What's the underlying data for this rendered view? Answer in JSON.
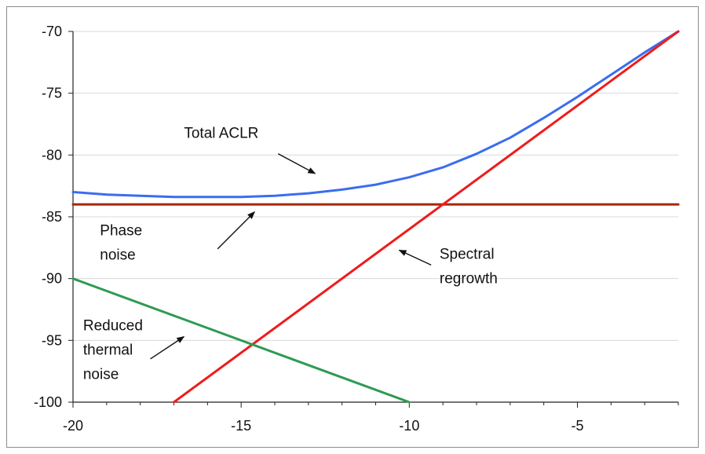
{
  "chart_data": {
    "type": "line",
    "title": "",
    "xlabel": "",
    "ylabel": "",
    "xlim": [
      -20,
      -2
    ],
    "ylim": [
      -100,
      -70
    ],
    "xticks": [
      -20,
      -15,
      -10,
      -5
    ],
    "xtick_labels": [
      "-20",
      "-15",
      "-10",
      "-5"
    ],
    "yticks": [
      -70,
      -75,
      -80,
      -85,
      -90,
      -95,
      -100
    ],
    "ytick_labels": [
      "-70",
      "-75",
      "-80",
      "-85",
      "-90",
      "-95",
      "-100"
    ],
    "grid": "horizontal",
    "legend": "none",
    "series": [
      {
        "name": "Total ACLR",
        "color": "#3a6df0",
        "x": [
          -20,
          -19,
          -18,
          -17,
          -16,
          -15,
          -14,
          -13,
          -12,
          -11,
          -10,
          -9,
          -8,
          -7,
          -6,
          -5,
          -4,
          -3,
          -2
        ],
        "y": [
          -83.0,
          -83.2,
          -83.3,
          -83.4,
          -83.4,
          -83.4,
          -83.3,
          -83.1,
          -82.8,
          -82.4,
          -81.8,
          -81.0,
          -79.9,
          -78.6,
          -77.0,
          -75.3,
          -73.5,
          -71.7,
          -70.0
        ]
      },
      {
        "name": "Phase noise",
        "color": "#a52a0a",
        "x": [
          -20,
          -2
        ],
        "y": [
          -84,
          -84
        ]
      },
      {
        "name": "Spectral regrowth",
        "color": "#ee1c1c",
        "x": [
          -17,
          -2
        ],
        "y": [
          -100,
          -70
        ]
      },
      {
        "name": "Reduced thermal noise",
        "color": "#2e9a52",
        "x": [
          -20,
          -10
        ],
        "y": [
          -90,
          -100
        ]
      }
    ],
    "annotations": [
      {
        "lines": [
          "Total ACLR"
        ],
        "text_x": -16.7,
        "text_y": -78.6,
        "anchor": "start",
        "arrow_from": [
          -13.9,
          -79.9
        ],
        "arrow_to": [
          -12.8,
          -81.5
        ]
      },
      {
        "lines": [
          "Phase",
          "noise"
        ],
        "text_x": -19.2,
        "text_y": -86.5,
        "anchor": "start",
        "arrow_from": [
          -15.7,
          -87.6
        ],
        "arrow_to": [
          -14.6,
          -84.6
        ]
      },
      {
        "lines": [
          "Spectral",
          "regrowth"
        ],
        "text_x": -9.1,
        "text_y": -88.4,
        "anchor": "start",
        "arrow_from": [
          -9.35,
          -88.9
        ],
        "arrow_to": [
          -10.3,
          -87.7
        ]
      },
      {
        "lines": [
          "Reduced",
          "thermal",
          "noise"
        ],
        "text_x": -19.7,
        "text_y": -94.2,
        "anchor": "start",
        "arrow_from": [
          -17.7,
          -96.5
        ],
        "arrow_to": [
          -16.7,
          -94.7
        ]
      }
    ]
  }
}
